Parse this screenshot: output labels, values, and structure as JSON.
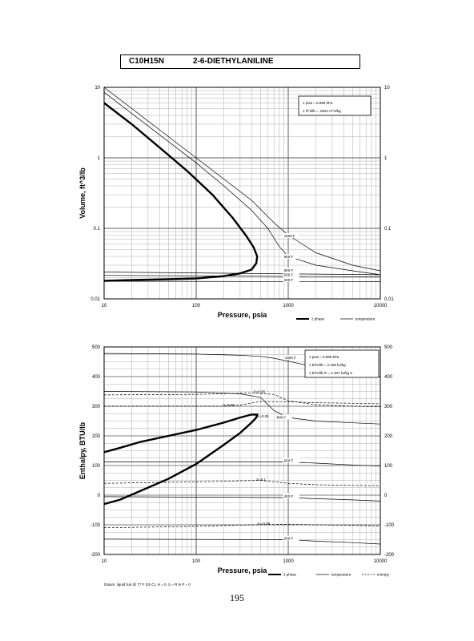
{
  "title": {
    "formula": "C10H15N",
    "name": "2-6-DIETHYLANILINE"
  },
  "page_number": "195",
  "chart_data": [
    {
      "type": "line",
      "xlabel": "Pressure,  psia",
      "ylabel": "Volume, ft^3/lb",
      "xscale": "log",
      "yscale": "log",
      "xlim": [
        10,
        10000
      ],
      "ylim": [
        0.01,
        10
      ],
      "grid": true,
      "x_ticks": [
        "10",
        "100",
        "1000",
        "10000"
      ],
      "y_ticks": [
        "10",
        "1",
        "0.1",
        "0.01"
      ],
      "info_box": [
        "1 psia  =  6.895 kPa",
        "1 ft^3/lb  =  .0624 m^3/kg"
      ],
      "legend": [
        {
          "label": "2 phase",
          "style": "thick"
        },
        {
          "label": "temperature",
          "style": "thin"
        }
      ],
      "series": [
        {
          "kind": "2phase",
          "x": [
            10,
            20,
            40,
            80,
            150,
            250,
            350,
            420,
            460,
            450,
            400,
            300,
            200,
            100,
            50,
            20,
            10
          ],
          "y": [
            6.0,
            3.0,
            1.4,
            0.65,
            0.3,
            0.14,
            0.078,
            0.054,
            0.04,
            0.032,
            0.026,
            0.023,
            0.021,
            0.0195,
            0.019,
            0.0185,
            0.018
          ]
        },
        {
          "name": "1000 F",
          "kind": "temp",
          "x": [
            10,
            100,
            200,
            400,
            700,
            1000,
            2000,
            5000,
            10000
          ],
          "y": [
            10,
            1.0,
            0.5,
            0.25,
            0.12,
            0.08,
            0.045,
            0.03,
            0.025
          ]
        },
        {
          "name": "900 F",
          "kind": "temp",
          "x": [
            10,
            100,
            200,
            400,
            600,
            800,
            1000,
            2000,
            5000,
            10000
          ],
          "y": [
            8.5,
            0.85,
            0.4,
            0.18,
            0.1,
            0.055,
            0.04,
            0.03,
            0.025,
            0.022
          ]
        },
        {
          "name": "800 F",
          "kind": "temp",
          "x": [
            10,
            10000
          ],
          "y": [
            0.024,
            0.022
          ]
        },
        {
          "name": "600 F",
          "kind": "temp",
          "x": [
            10,
            10000
          ],
          "y": [
            0.0215,
            0.0205
          ]
        },
        {
          "name": "200 F",
          "kind": "temp",
          "x": [
            10,
            10000
          ],
          "y": [
            0.0178,
            0.0175
          ]
        }
      ]
    },
    {
      "type": "line",
      "xlabel": "Pressure,  psia",
      "ylabel": "Enthalpy, BTU/lb",
      "xscale": "log",
      "xlim": [
        10,
        10000
      ],
      "ylim": [
        -200,
        500
      ],
      "grid": true,
      "x_ticks": [
        "10",
        "100",
        "1000",
        "10000"
      ],
      "y_ticks": [
        "500",
        "400",
        "300",
        "200",
        "100",
        "0",
        "-100",
        "-200"
      ],
      "info_box": [
        "1 psia  =  6.895 kPa",
        "1 BTU/lb  =  2.326 kJ/kg",
        "1 BTU/lb R  =  4.187 kJ/kg K"
      ],
      "datum_note": "Datum: liquid Sat @ 77 F (25 C),  H = 0,  S = R ln P = 0",
      "legend": [
        {
          "label": "2 phase",
          "style": "thick"
        },
        {
          "label": "temperature",
          "style": "thin"
        },
        {
          "label": "entropy",
          "style": "dashed"
        }
      ],
      "annotations": [
        "S=0.36",
        "S=0.32",
        "S=0.26",
        "S=0.1",
        "S=-0.08"
      ],
      "series": [
        {
          "kind": "2phase",
          "x": [
            10,
            15,
            25,
            50,
            100,
            200,
            300,
            400,
            460,
            450,
            400,
            300,
            200,
            100,
            50,
            25,
            15,
            10
          ],
          "y": [
            145,
            160,
            180,
            200,
            220,
            245,
            262,
            272,
            272,
            262,
            245,
            210,
            170,
            105,
            55,
            15,
            -15,
            -30
          ]
        },
        {
          "name": "1000 F",
          "kind": "temp",
          "x": [
            10,
            100,
            300,
            500,
            700,
            1000,
            2000,
            5000,
            10000
          ],
          "y": [
            478,
            476,
            472,
            468,
            462,
            452,
            432,
            412,
            400
          ]
        },
        {
          "name": "800 F",
          "kind": "temp",
          "x": [
            10,
            100,
            300,
            500,
            700,
            1000,
            2000,
            5000,
            10000
          ],
          "y": [
            350,
            348,
            342,
            330,
            285,
            262,
            250,
            244,
            240
          ]
        },
        {
          "name": "600 F",
          "kind": "temp",
          "x": [
            10,
            1000,
            2000,
            5000,
            10000
          ],
          "y": [
            112,
            112,
            108,
            102,
            98
          ]
        },
        {
          "name": "400 F",
          "kind": "temp",
          "x": [
            10,
            1000,
            2000,
            5000,
            10000
          ],
          "y": [
            -5,
            -8,
            -12,
            -16,
            -20
          ]
        },
        {
          "name": "200 F",
          "kind": "temp",
          "x": [
            10,
            1000,
            2000,
            5000,
            10000
          ],
          "y": [
            -148,
            -150,
            -155,
            -160,
            -165
          ]
        },
        {
          "name": "S=0.36",
          "kind": "entropy",
          "x": [
            10,
            100,
            400,
            700,
            1000,
            2000,
            5000,
            10000
          ],
          "y": [
            338,
            340,
            345,
            340,
            318,
            305,
            300,
            298
          ]
        },
        {
          "name": "S=0.32",
          "kind": "entropy",
          "x": [
            10,
            100,
            200,
            300,
            500,
            1000,
            2000,
            5000,
            10000
          ],
          "y": [
            300,
            300,
            300,
            304,
            316,
            315,
            312,
            310,
            308
          ]
        },
        {
          "name": "S=0.1",
          "kind": "entropy",
          "x": [
            10,
            100,
            500,
            1000,
            2000,
            5000,
            10000
          ],
          "y": [
            40,
            45,
            50,
            40,
            35,
            33,
            32
          ]
        },
        {
          "name": "S=-0.08",
          "kind": "entropy",
          "x": [
            10,
            100,
            400,
            1000,
            2000,
            5000,
            10000
          ],
          "y": [
            -110,
            -105,
            -100,
            -98,
            -100,
            -102,
            -104
          ]
        }
      ]
    }
  ]
}
